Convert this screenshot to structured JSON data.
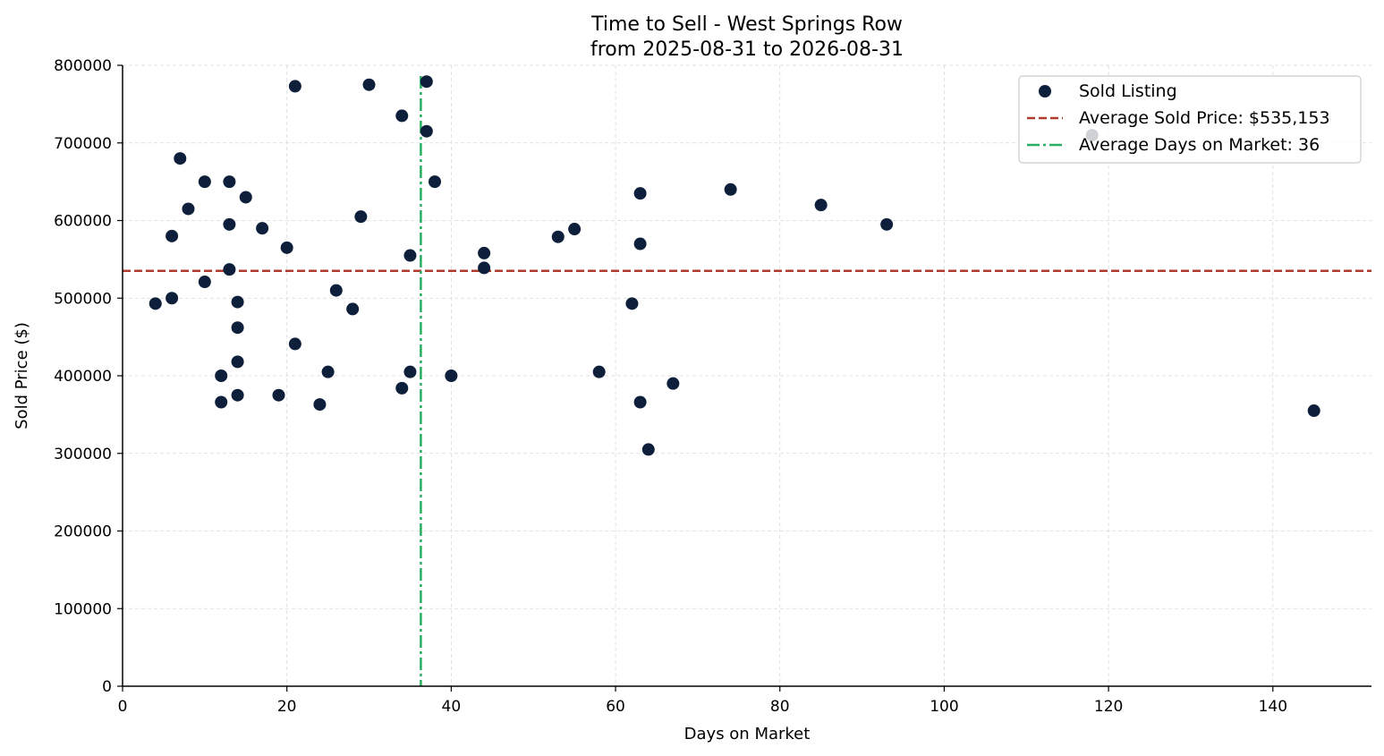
{
  "chart_data": {
    "type": "scatter",
    "title": "Time to Sell - West Springs Row",
    "subtitle": "from 2025-08-31 to 2026-08-31",
    "xlabel": "Days on Market",
    "ylabel": "Sold Price ($)",
    "xlim": [
      0,
      152
    ],
    "ylim": [
      0,
      800000
    ],
    "xticks": [
      0,
      20,
      40,
      60,
      80,
      100,
      120,
      140
    ],
    "yticks": [
      0,
      100000,
      200000,
      300000,
      400000,
      500000,
      600000,
      700000,
      800000
    ],
    "grid": true,
    "legend_position": "top-right",
    "colors": {
      "points": "#0d1f3a",
      "avg_price_line": "#b03a2e",
      "avg_days_line": "#27ae60",
      "grid": "#d9d9d9"
    },
    "series": [
      {
        "name": "Sold Listing",
        "points": [
          [
            4,
            493000
          ],
          [
            6,
            580000
          ],
          [
            6,
            500000
          ],
          [
            7,
            680000
          ],
          [
            8,
            615000
          ],
          [
            10,
            650000
          ],
          [
            10,
            521000
          ],
          [
            12,
            400000
          ],
          [
            12,
            366000
          ],
          [
            13,
            650000
          ],
          [
            13,
            595000
          ],
          [
            13,
            537000
          ],
          [
            14,
            495000
          ],
          [
            14,
            462000
          ],
          [
            14,
            418000
          ],
          [
            14,
            375000
          ],
          [
            15,
            630000
          ],
          [
            17,
            590000
          ],
          [
            19,
            375000
          ],
          [
            20,
            565000
          ],
          [
            21,
            773000
          ],
          [
            21,
            441000
          ],
          [
            24,
            363000
          ],
          [
            25,
            405000
          ],
          [
            26,
            510000
          ],
          [
            28,
            486000
          ],
          [
            29,
            605000
          ],
          [
            30,
            775000
          ],
          [
            34,
            735000
          ],
          [
            34,
            384000
          ],
          [
            35,
            555000
          ],
          [
            35,
            405000
          ],
          [
            37,
            779000
          ],
          [
            37,
            715000
          ],
          [
            38,
            650000
          ],
          [
            40,
            400000
          ],
          [
            44,
            558000
          ],
          [
            44,
            539000
          ],
          [
            53,
            579000
          ],
          [
            55,
            589000
          ],
          [
            58,
            405000
          ],
          [
            62,
            493000
          ],
          [
            63,
            635000
          ],
          [
            63,
            570000
          ],
          [
            63,
            366000
          ],
          [
            64,
            305000
          ],
          [
            67,
            390000
          ],
          [
            74,
            640000
          ],
          [
            85,
            620000
          ],
          [
            93,
            595000
          ],
          [
            118,
            710000
          ],
          [
            145,
            355000
          ]
        ]
      }
    ],
    "reference_lines": [
      {
        "name": "Average Sold Price: $535,153",
        "axis": "y",
        "value": 535153,
        "style": "dashed"
      },
      {
        "name": "Average Days on Market: 36",
        "axis": "x",
        "value": 36.3,
        "style": "dashdot"
      }
    ]
  }
}
